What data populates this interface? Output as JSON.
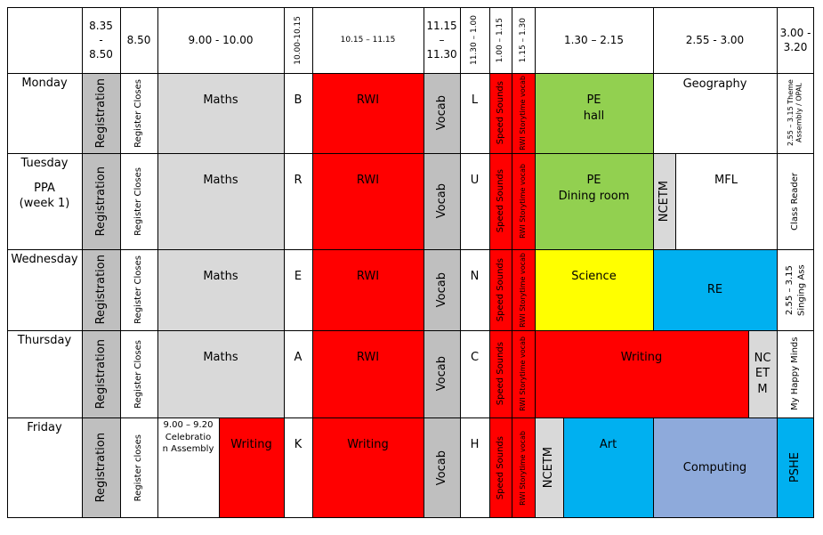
{
  "header": {
    "t1_top": "8.35",
    "t1_mid": "-",
    "t1_bot": "8.50",
    "t2": "8.50",
    "t3": "9.00 - 10.00",
    "t4": "10.00-10.15",
    "t5": "10.15 – 11.15",
    "t6_top": "11.15",
    "t6_mid": "–",
    "t6_bot": "11.30",
    "t7": "11.30 – 1.00",
    "t8": "1.00 – 1.15",
    "t9": "1.15 – 1.30",
    "t10": "1.30 – 2.15",
    "t11": "2.55 - 3.00",
    "t12_top": "3.00 -",
    "t12_bot": "3.20"
  },
  "days": {
    "mon": "Monday",
    "tue_name": "Tuesday",
    "tue_note1": "PPA",
    "tue_note2": "(week 1)",
    "wed": "Wednesday",
    "thu": "Thursday",
    "fri": "Friday"
  },
  "common": {
    "registration": "Registration",
    "register_closes": "Register Closes",
    "register_closes_fri": "Register closes",
    "maths": "Maths",
    "rwi": "RWI",
    "vocab": "Vocab",
    "speed_sounds": "Speed Sounds",
    "rwi_storytime": "RWI Storytime vocab"
  },
  "mon": {
    "letter1": "B",
    "letter2": "L",
    "pe_1": "PE",
    "pe_2": "hall",
    "geography": "Geography",
    "assembly": "2.55 – 3.15 Theme Assembly / OPAL"
  },
  "tue": {
    "letter1": "R",
    "letter2": "U",
    "pe_1": "PE",
    "pe_2": "Dining room",
    "ncetm": "NCETM",
    "mfl": "MFL",
    "class_reader": "Class Reader"
  },
  "wed": {
    "letter1": "E",
    "letter2": "N",
    "science": "Science",
    "re": "RE",
    "singing": "2.55 – 3.15 Singing Ass"
  },
  "thu": {
    "letter1": "A",
    "letter2": "C",
    "writing": "Writing",
    "ncetm_1": "NC",
    "ncetm_2": "ET",
    "ncetm_3": "M",
    "happy_minds": "My Happy Minds"
  },
  "fri": {
    "assembly_1": "9.00 – 9.20",
    "assembly_2": "Celebratio",
    "assembly_3": "n Assembly",
    "writing_morning": "Writing",
    "letter1": "K",
    "writing_main": "Writing",
    "letter2": "H",
    "ncetm": "NCETM",
    "art": "Art",
    "computing": "Computing",
    "pshe": "PSHE"
  }
}
